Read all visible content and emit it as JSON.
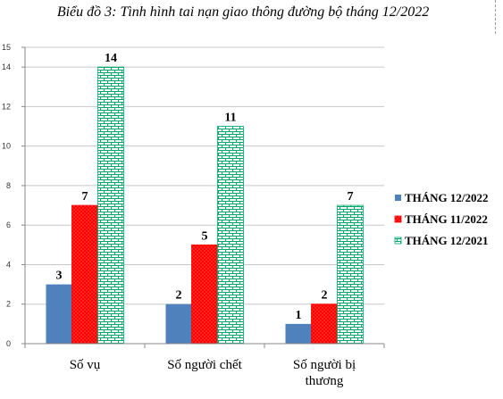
{
  "chart_data": {
    "type": "bar",
    "title": "Biểu đồ 3: Tình hình tai nạn giao thông đường bộ tháng 12/2022",
    "categories": [
      "Số vụ",
      "Số người chết",
      "Số người bị thương"
    ],
    "series": [
      {
        "name": "THÁNG 12/2022",
        "values": [
          3,
          2,
          1
        ],
        "color": "#4f81bd"
      },
      {
        "name": "THÁNG 11/2022",
        "values": [
          7,
          5,
          2
        ],
        "color": "#ff0000"
      },
      {
        "name": "THÁNG 12/2021",
        "values": [
          14,
          11,
          7
        ],
        "color": "#00a86b"
      }
    ],
    "ylim": [
      0,
      15
    ],
    "yticks": [
      0,
      2,
      4,
      6,
      8,
      10,
      12,
      14,
      15
    ],
    "grid": true,
    "legend": "right",
    "xlabel": "",
    "ylabel": ""
  }
}
